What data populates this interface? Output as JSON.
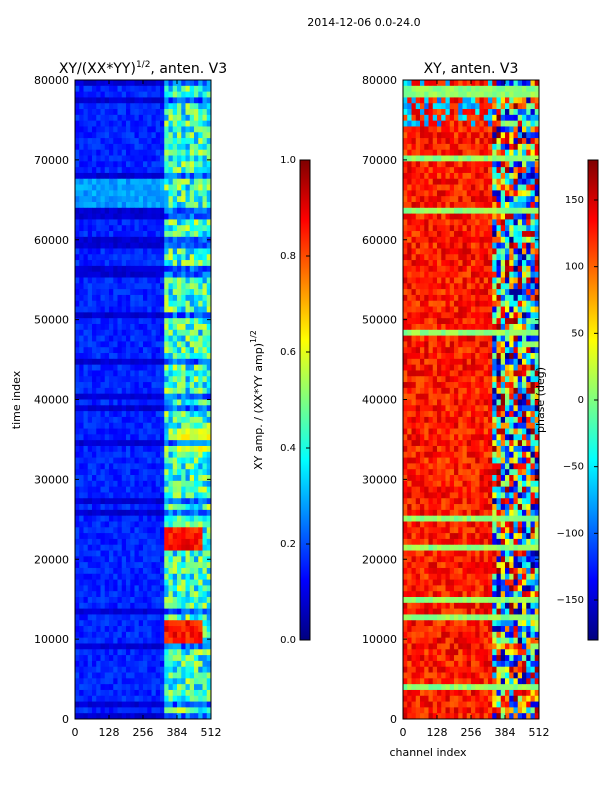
{
  "figure": {
    "suptitle": "2014-12-06 0.0-24.0"
  },
  "colormap": [
    "#00007f",
    "#0000ff",
    "#007fff",
    "#00ffff",
    "#7fff7f",
    "#ffff00",
    "#ff7f00",
    "#ff0000",
    "#7f0000"
  ],
  "chart_data": [
    {
      "type": "heatmap",
      "title_prefix": "XY/(XX*YY)",
      "title_exp": "1/2",
      "title_suffix": ", anten. V3",
      "xlabel": "",
      "ylabel": "time index",
      "xlim": [
        0,
        512
      ],
      "ylim": [
        0,
        80000
      ],
      "xticks": [
        0,
        128,
        256,
        384,
        512
      ],
      "yticks": [
        0,
        10000,
        20000,
        30000,
        40000,
        50000,
        60000,
        70000,
        80000
      ],
      "colorbar": {
        "label": "XY amp. / (XX*YY amp)",
        "label_exp": "1/2",
        "range": [
          0.0,
          1.0
        ],
        "ticks": [
          0.0,
          0.2,
          0.4,
          0.6,
          0.8,
          1.0
        ],
        "tick_labels": [
          "0.0",
          "0.2",
          "0.4",
          "0.6",
          "0.8",
          "1.0"
        ]
      },
      "description_values": {
        "channels_0_320": "~0.1-0.2 (blue)",
        "channels_320_512": "~0.3-0.6 with peaks ~0.8 near time 11000 and 22500"
      }
    },
    {
      "type": "heatmap",
      "title": "XY, anten. V3",
      "xlabel": "channel index",
      "ylabel": "",
      "xlim": [
        0,
        512
      ],
      "ylim": [
        0,
        80000
      ],
      "xticks": [
        0,
        128,
        256,
        384,
        512
      ],
      "yticks": [
        0,
        10000,
        20000,
        30000,
        40000,
        50000,
        60000,
        70000,
        80000
      ],
      "colorbar": {
        "label": "phase (deg)",
        "range": [
          -180,
          180
        ],
        "ticks": [
          -150,
          -100,
          -50,
          0,
          50,
          100,
          150
        ],
        "tick_labels": [
          "−150",
          "−100",
          "−50",
          "0",
          "50",
          "100",
          "150"
        ]
      },
      "description_values": {
        "channels_0_320": "~100-150 deg (orange/red)",
        "channels_320_512": "mixed phases -180 to 180"
      }
    }
  ]
}
